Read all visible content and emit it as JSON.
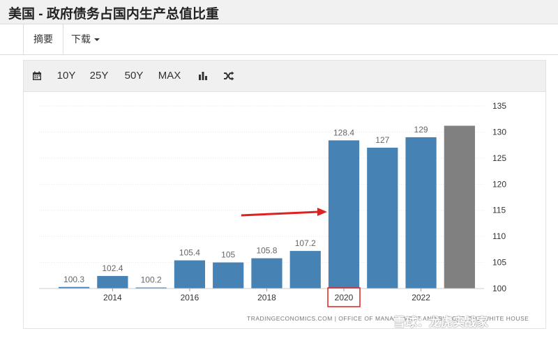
{
  "header": {
    "title": "美国 - 政府债务占国内生产总值比重"
  },
  "tabs": [
    {
      "label": "摘要"
    },
    {
      "label": "下载"
    }
  ],
  "toolbar": {
    "ranges": [
      "10Y",
      "25Y",
      "50Y",
      "MAX"
    ],
    "icons": [
      "calendar-icon",
      "bar-chart-icon",
      "shuffle-icon"
    ]
  },
  "chart_data": {
    "type": "bar",
    "title": "",
    "xlabel": "",
    "ylabel": "",
    "ylim": [
      100,
      135
    ],
    "yticks": [
      100,
      105,
      110,
      115,
      120,
      125,
      130,
      135
    ],
    "x_tick_labels": [
      "2014",
      "2016",
      "2018",
      "2020",
      "2022"
    ],
    "categories": [
      "2013",
      "2014",
      "2015",
      "2016",
      "2017",
      "2018",
      "2019",
      "2020",
      "2021",
      "2022",
      "2023"
    ],
    "values": [
      100.3,
      102.4,
      100.2,
      105.4,
      105,
      105.8,
      107.2,
      128.4,
      127,
      129,
      131.2
    ],
    "data_labels": [
      "100.3",
      "102.4",
      "100.2",
      "105.4",
      "105",
      "105.8",
      "107.2",
      "128.4",
      "127",
      "129",
      ""
    ],
    "colors": [
      "#4682b4",
      "#4682b4",
      "#4682b4",
      "#4682b4",
      "#4682b4",
      "#4682b4",
      "#4682b4",
      "#4682b4",
      "#4682b4",
      "#4682b4",
      "#808080"
    ],
    "highlight_box_label": "2020",
    "arrow_color": "#e02020",
    "grid": true,
    "source": "TRADINGECONOMICS.COM | OFFICE OF MANAGEMENT AND BUDGET, THE WHITE HOUSE"
  },
  "watermark": "雪球：龙虎实战家"
}
